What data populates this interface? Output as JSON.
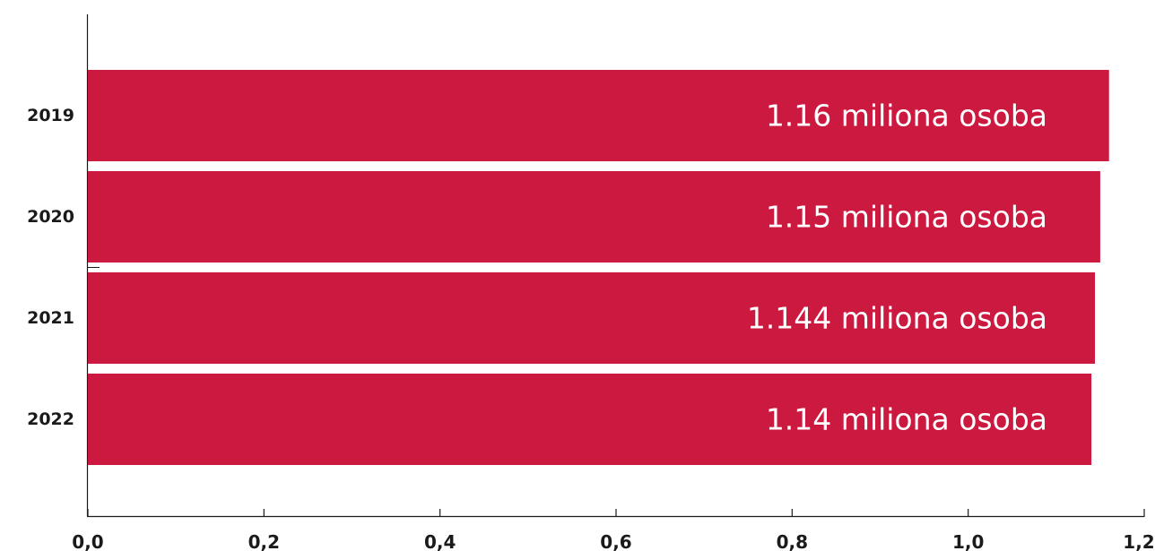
{
  "chart_data": {
    "type": "bar",
    "orientation": "horizontal",
    "categories": [
      "2019",
      "2020",
      "2021",
      "2022"
    ],
    "values": [
      1.16,
      1.15,
      1.144,
      1.14
    ],
    "data_labels": [
      "1.16 miliona osoba",
      "1.15 miliona osoba",
      "1.144 miliona osoba",
      "1.14 miliona osoba"
    ],
    "x_ticks": [
      "0,0",
      "0,2",
      "0,4",
      "0,6",
      "0,8",
      "1,0",
      "1,2"
    ],
    "xlim": [
      0,
      1.2
    ],
    "title": "",
    "xlabel": "",
    "ylabel": "",
    "grid": false,
    "bar_color": "#cc1940",
    "label_color": "#ffffff",
    "axis_color": "#1a1a1a"
  }
}
